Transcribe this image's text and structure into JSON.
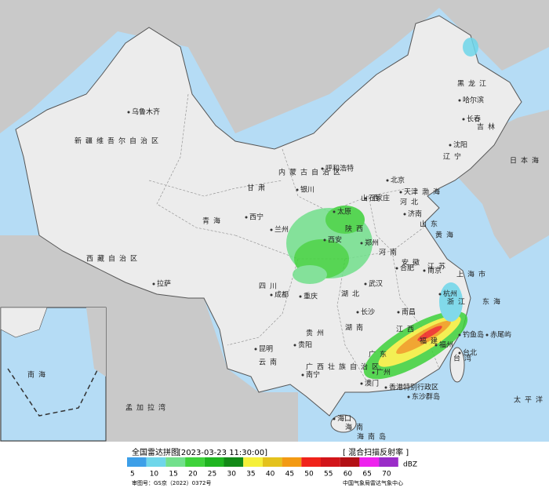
{
  "header": {
    "title": "全国雷达拼图",
    "timestamp": "[2023-03-23 11:30:00]",
    "product": "[ 混合扫描反射率 ]"
  },
  "legend": {
    "unit": "dBZ",
    "levels": [
      {
        "value": 5,
        "color": "#3d9fe8"
      },
      {
        "value": 10,
        "color": "#6fd6ea"
      },
      {
        "value": 15,
        "color": "#72e08c"
      },
      {
        "value": 20,
        "color": "#3ed23a"
      },
      {
        "value": 25,
        "color": "#1fb520"
      },
      {
        "value": 30,
        "color": "#138a17"
      },
      {
        "value": 35,
        "color": "#f5f03a"
      },
      {
        "value": 40,
        "color": "#e4c21c"
      },
      {
        "value": 45,
        "color": "#f39a13"
      },
      {
        "value": 50,
        "color": "#f0231a"
      },
      {
        "value": 55,
        "color": "#d2151a"
      },
      {
        "value": 60,
        "color": "#b21015"
      },
      {
        "value": 65,
        "color": "#ee22ee"
      },
      {
        "value": 70,
        "color": "#9a2cc8"
      }
    ]
  },
  "footer": {
    "approval": "审图号：GS京（2022）0372号",
    "source": "中国气象局雷达气象中心"
  },
  "map": {
    "labels": [
      "乌鲁木齐",
      "新疆维吾尔自治区",
      "西藏自治区",
      "拉萨",
      "青海",
      "西宁",
      "甘肃",
      "兰州",
      "内蒙古自治区",
      "呼和浩特",
      "黑龙江",
      "哈尔滨",
      "吉林",
      "长春",
      "辽宁",
      "沈阳",
      "北京",
      "天津",
      "河北",
      "石家庄",
      "山西",
      "太原",
      "山东",
      "济南",
      "银川",
      "陕西",
      "西安",
      "河南",
      "郑州",
      "四川",
      "成都",
      "重庆",
      "贵州",
      "贵阳",
      "云南",
      "昆明",
      "湖北",
      "武汉",
      "湖南",
      "长沙",
      "安徽",
      "合肥",
      "江苏",
      "南京",
      "上海市",
      "浙江",
      "杭州",
      "江西",
      "南昌",
      "福建",
      "福州",
      "广东",
      "广州",
      "广西壮族自治区",
      "南宁",
      "海南",
      "海口",
      "台湾",
      "台北",
      "香港特别行政区",
      "澳门",
      "日本海",
      "黄海",
      "东海",
      "太平洋",
      "渤海",
      "孟加拉湾",
      "南海",
      "东沙群岛",
      "钓鱼岛",
      "赤尾屿",
      "海南岛"
    ]
  }
}
